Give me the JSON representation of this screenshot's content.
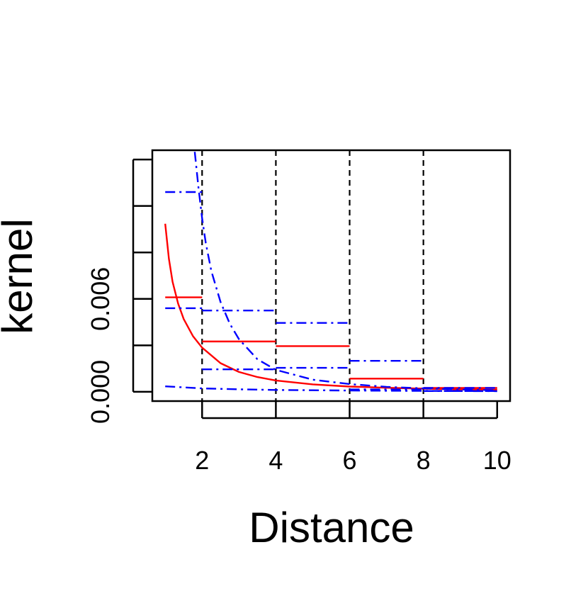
{
  "chart_data": {
    "type": "line",
    "xlabel": "Distance",
    "ylabel": "kernel",
    "xlim": [
      0.65,
      10.35
    ],
    "ylim": [
      -0.0006,
      0.0156
    ],
    "x_ticks": [
      2,
      4,
      6,
      8,
      10
    ],
    "y_ticks": [
      0,
      0.003,
      0.006,
      0.009,
      0.012,
      0.015
    ],
    "y_tick_labels": [
      {
        "value": 0,
        "text": "0.000"
      },
      {
        "value": 0.006,
        "text": "0.006"
      }
    ],
    "vertical_guides": [
      2,
      4,
      6,
      8
    ],
    "colors": {
      "estimate": "#ff0000",
      "bounds": "#0000ff",
      "guides": "#000000"
    },
    "series": [
      {
        "role": "estimate-curve",
        "style": "solid",
        "color": "#ff0000",
        "x": [
          1.0,
          1.1,
          1.2,
          1.35,
          1.5,
          1.75,
          2.0,
          2.5,
          3.0,
          3.5,
          4.0,
          5.0,
          6.0,
          7.0,
          8.0,
          9.0,
          10.0
        ],
        "y": [
          0.01085,
          0.0086,
          0.0071,
          0.0057,
          0.0047,
          0.0036,
          0.00285,
          0.00185,
          0.00128,
          0.00095,
          0.00073,
          0.00048,
          0.00034,
          0.00026,
          0.0002,
          0.00016,
          0.00013
        ]
      },
      {
        "role": "estimate-steps",
        "style": "solid",
        "color": "#ff0000",
        "segments": [
          {
            "x": [
              1,
              2
            ],
            "y": 0.0061
          },
          {
            "x": [
              2,
              4
            ],
            "y": 0.00325
          },
          {
            "x": [
              4,
              6
            ],
            "y": 0.00295
          },
          {
            "x": [
              6,
              8
            ],
            "y": 0.00085
          },
          {
            "x": [
              8,
              10
            ],
            "y": 0.00025
          }
        ]
      },
      {
        "role": "upper-bound-curve",
        "style": "dashdot",
        "color": "#0000ff",
        "x": [
          1.8,
          1.9,
          2.0,
          2.1,
          2.25,
          2.5,
          2.75,
          3.0,
          3.5,
          4.0,
          5.0,
          6.0,
          7.0,
          8.0,
          9.0,
          10.0
        ],
        "y": [
          0.0155,
          0.0132,
          0.0112,
          0.0096,
          0.0078,
          0.0058,
          0.0044,
          0.0034,
          0.0021,
          0.00142,
          0.00078,
          0.0005,
          0.00032,
          0.00022,
          0.00015,
          0.0001
        ]
      },
      {
        "role": "lower-bound-curve",
        "style": "dashdot",
        "color": "#0000ff",
        "x": [
          1.0,
          2.0,
          3.0,
          4.0,
          5.0,
          6.0,
          7.0,
          8.0,
          9.0,
          10.0
        ],
        "y": [
          0.00035,
          0.00022,
          0.00016,
          0.00012,
          0.0001,
          8e-05,
          7e-05,
          6e-05,
          5e-05,
          4e-05
        ]
      },
      {
        "role": "upper-bound-steps",
        "style": "dashdot",
        "color": "#0000ff",
        "segments": [
          {
            "x": [
              1,
              2
            ],
            "y": 0.0129
          },
          {
            "x": [
              2,
              4
            ],
            "y": 0.00525
          },
          {
            "x": [
              4,
              6
            ],
            "y": 0.00445
          },
          {
            "x": [
              6,
              8
            ],
            "y": 0.002
          },
          {
            "x": [
              8,
              10
            ],
            "y": 0.00025
          }
        ]
      },
      {
        "role": "lower-bound-steps",
        "style": "dashdot",
        "color": "#0000ff",
        "segments": [
          {
            "x": [
              1,
              2
            ],
            "y": 0.0054
          },
          {
            "x": [
              2,
              4
            ],
            "y": 0.00145
          },
          {
            "x": [
              4,
              6
            ],
            "y": 0.00155
          },
          {
            "x": [
              6,
              8
            ],
            "y": 0.00015
          },
          {
            "x": [
              8,
              10
            ],
            "y": 5e-05
          }
        ]
      }
    ]
  }
}
